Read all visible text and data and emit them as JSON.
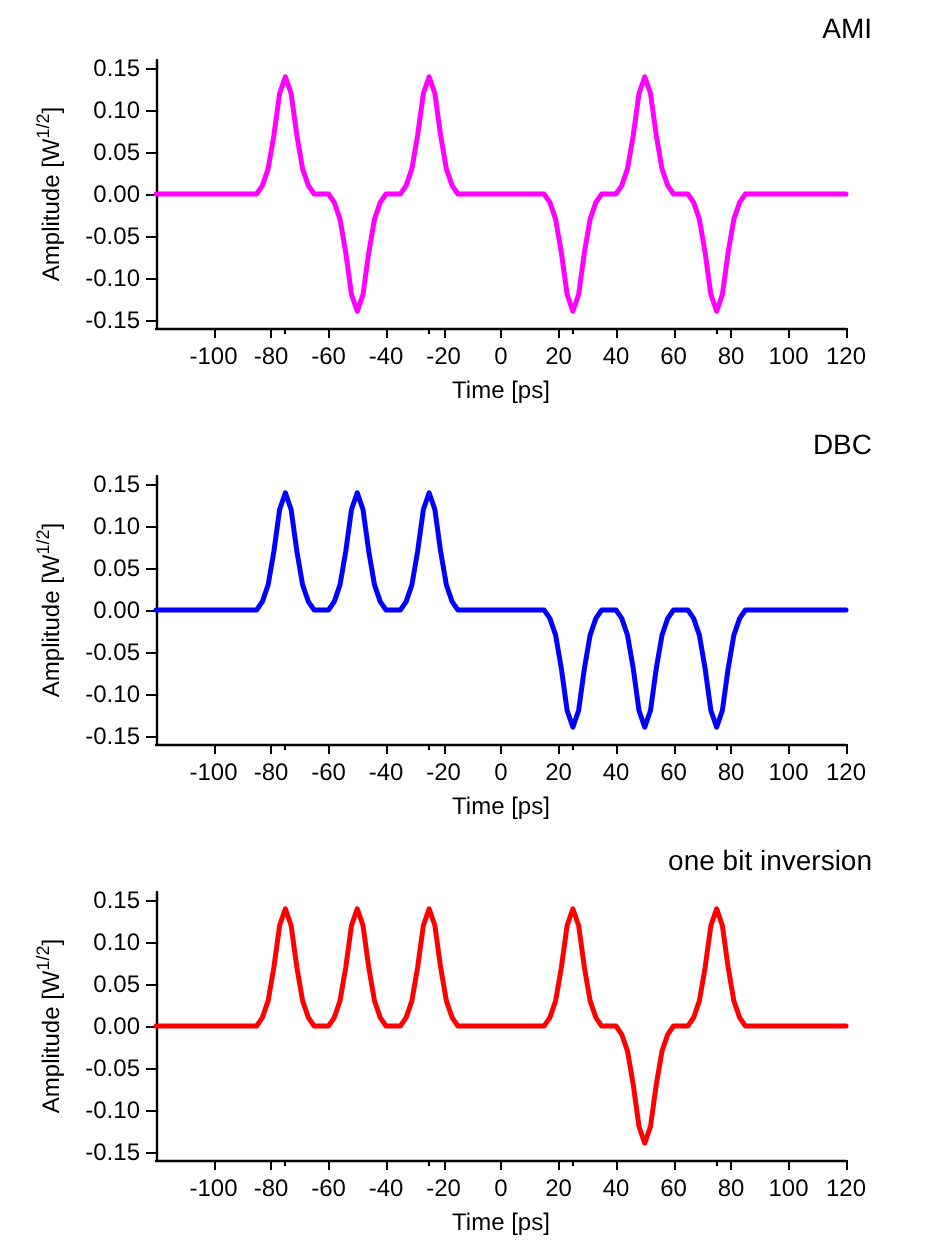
{
  "chart_data": [
    {
      "type": "line",
      "title": "AMI",
      "xlabel": "Time [ps]",
      "ylabel": "Amplitude [W$^{1/2}$]",
      "x": [
        -120,
        -85,
        -83,
        -81,
        -79,
        -77,
        -75,
        -73,
        -71,
        -69,
        -67,
        -65,
        -60,
        -58,
        -56,
        -54,
        -52,
        -50,
        -48,
        -46,
        -44,
        -42,
        -40,
        -35,
        -33,
        -31,
        -29,
        -27,
        -25,
        -23,
        -21,
        -19,
        -17,
        -15,
        15,
        17,
        19,
        21,
        23,
        25,
        27,
        29,
        31,
        33,
        35,
        40,
        42,
        44,
        46,
        48,
        50,
        52,
        54,
        56,
        58,
        60,
        65,
        67,
        69,
        71,
        73,
        75,
        77,
        79,
        81,
        83,
        85,
        120
      ],
      "series": [
        {
          "color": "#ff00ff",
          "values": [
            0,
            0,
            0.01,
            0.03,
            0.07,
            0.12,
            0.14,
            0.12,
            0.07,
            0.03,
            0.01,
            0,
            0,
            -0.01,
            -0.03,
            -0.07,
            -0.12,
            -0.14,
            -0.12,
            -0.07,
            -0.03,
            -0.01,
            0,
            0,
            0.01,
            0.03,
            0.07,
            0.12,
            0.14,
            0.12,
            0.07,
            0.03,
            0.01,
            0,
            0,
            -0.01,
            -0.03,
            -0.07,
            -0.12,
            -0.14,
            -0.12,
            -0.07,
            -0.03,
            -0.01,
            0,
            0,
            0.01,
            0.03,
            0.07,
            0.12,
            0.14,
            0.12,
            0.07,
            0.03,
            0.01,
            0,
            0,
            -0.01,
            -0.03,
            -0.07,
            -0.12,
            -0.14,
            -0.12,
            -0.07,
            -0.03,
            -0.01,
            0,
            0
          ]
        }
      ],
      "xlim": [
        -120,
        120
      ],
      "xticks": [
        -100,
        -80,
        -60,
        -40,
        -20,
        0,
        20,
        40,
        60,
        80,
        100,
        120
      ],
      "ylim": [
        -0.16,
        0.16
      ],
      "yticks": [
        {
          "value": -0.15,
          "label": "-0.15"
        },
        {
          "value": -0.1,
          "label": "-0.10"
        },
        {
          "value": -0.05,
          "label": "-0.05"
        },
        {
          "value": 0,
          "label": "0.00"
        },
        {
          "value": 0.05,
          "label": "0.05"
        },
        {
          "value": 0.1,
          "label": "0.10"
        },
        {
          "value": 0.15,
          "label": "0.15"
        }
      ],
      "grid": false,
      "marker": "none",
      "line_style": "solid"
    },
    {
      "type": "line",
      "title": "DBC",
      "xlabel": "Time [ps]",
      "ylabel": "Amplitude [W$^{1/2}$]",
      "x": [
        -120,
        -85,
        -83,
        -81,
        -79,
        -77,
        -75,
        -73,
        -71,
        -69,
        -67,
        -65,
        -60,
        -58,
        -56,
        -54,
        -52,
        -50,
        -48,
        -46,
        -44,
        -42,
        -40,
        -35,
        -33,
        -31,
        -29,
        -27,
        -25,
        -23,
        -21,
        -19,
        -17,
        -15,
        15,
        17,
        19,
        21,
        23,
        25,
        27,
        29,
        31,
        33,
        35,
        40,
        42,
        44,
        46,
        48,
        50,
        52,
        54,
        56,
        58,
        60,
        65,
        67,
        69,
        71,
        73,
        75,
        77,
        79,
        81,
        83,
        85,
        120
      ],
      "series": [
        {
          "color": "#0000ff",
          "values": [
            0,
            0,
            0.01,
            0.03,
            0.07,
            0.12,
            0.14,
            0.12,
            0.07,
            0.03,
            0.01,
            0,
            0,
            0.01,
            0.03,
            0.07,
            0.12,
            0.14,
            0.12,
            0.07,
            0.03,
            0.01,
            0,
            0,
            0.01,
            0.03,
            0.07,
            0.12,
            0.14,
            0.12,
            0.07,
            0.03,
            0.01,
            0,
            0,
            -0.01,
            -0.03,
            -0.07,
            -0.12,
            -0.14,
            -0.12,
            -0.07,
            -0.03,
            -0.01,
            0,
            0,
            -0.01,
            -0.03,
            -0.07,
            -0.12,
            -0.14,
            -0.12,
            -0.07,
            -0.03,
            -0.01,
            0,
            0,
            -0.01,
            -0.03,
            -0.07,
            -0.12,
            -0.14,
            -0.12,
            -0.07,
            -0.03,
            -0.01,
            0,
            0
          ]
        }
      ],
      "xlim": [
        -120,
        120
      ],
      "xticks": [
        -100,
        -80,
        -60,
        -40,
        -20,
        0,
        20,
        40,
        60,
        80,
        100,
        120
      ],
      "ylim": [
        -0.16,
        0.16
      ],
      "yticks": [
        {
          "value": -0.15,
          "label": "-0.15"
        },
        {
          "value": -0.1,
          "label": "-0.10"
        },
        {
          "value": -0.05,
          "label": "-0.05"
        },
        {
          "value": 0,
          "label": "0.00"
        },
        {
          "value": 0.05,
          "label": "0.05"
        },
        {
          "value": 0.1,
          "label": "0.10"
        },
        {
          "value": 0.15,
          "label": "0.15"
        }
      ],
      "grid": false,
      "marker": "none",
      "line_style": "solid"
    },
    {
      "type": "line",
      "title": "one bit inversion",
      "xlabel": "Time [ps]",
      "ylabel": "Amplitude [W$^{1/2}$]",
      "x": [
        -120,
        -85,
        -83,
        -81,
        -79,
        -77,
        -75,
        -73,
        -71,
        -69,
        -67,
        -65,
        -60,
        -58,
        -56,
        -54,
        -52,
        -50,
        -48,
        -46,
        -44,
        -42,
        -40,
        -35,
        -33,
        -31,
        -29,
        -27,
        -25,
        -23,
        -21,
        -19,
        -17,
        -15,
        15,
        17,
        19,
        21,
        23,
        25,
        27,
        29,
        31,
        33,
        35,
        40,
        42,
        44,
        46,
        48,
        50,
        52,
        54,
        56,
        58,
        60,
        65,
        67,
        69,
        71,
        73,
        75,
        77,
        79,
        81,
        83,
        85,
        120
      ],
      "series": [
        {
          "color": "#ff0000",
          "values": [
            0,
            0,
            0.01,
            0.03,
            0.07,
            0.12,
            0.14,
            0.12,
            0.07,
            0.03,
            0.01,
            0,
            0,
            0.01,
            0.03,
            0.07,
            0.12,
            0.14,
            0.12,
            0.07,
            0.03,
            0.01,
            0,
            0,
            0.01,
            0.03,
            0.07,
            0.12,
            0.14,
            0.12,
            0.07,
            0.03,
            0.01,
            0,
            0,
            0.01,
            0.03,
            0.07,
            0.12,
            0.14,
            0.12,
            0.07,
            0.03,
            0.01,
            0,
            0,
            -0.01,
            -0.03,
            -0.07,
            -0.12,
            -0.14,
            -0.12,
            -0.07,
            -0.03,
            -0.01,
            0,
            0,
            0.01,
            0.03,
            0.07,
            0.12,
            0.14,
            0.12,
            0.07,
            0.03,
            0.01,
            0,
            0
          ]
        }
      ],
      "xlim": [
        -120,
        120
      ],
      "xticks": [
        -100,
        -80,
        -60,
        -40,
        -20,
        0,
        20,
        40,
        60,
        80,
        100,
        120
      ],
      "ylim": [
        -0.16,
        0.16
      ],
      "yticks": [
        {
          "value": -0.15,
          "label": "-0.15"
        },
        {
          "value": -0.1,
          "label": "-0.10"
        },
        {
          "value": -0.05,
          "label": "-0.05"
        },
        {
          "value": 0,
          "label": "0.00"
        },
        {
          "value": 0.05,
          "label": "0.05"
        },
        {
          "value": 0.1,
          "label": "0.10"
        },
        {
          "value": 0.15,
          "label": "0.15"
        }
      ],
      "grid": false,
      "marker": "none",
      "line_style": "solid"
    }
  ]
}
